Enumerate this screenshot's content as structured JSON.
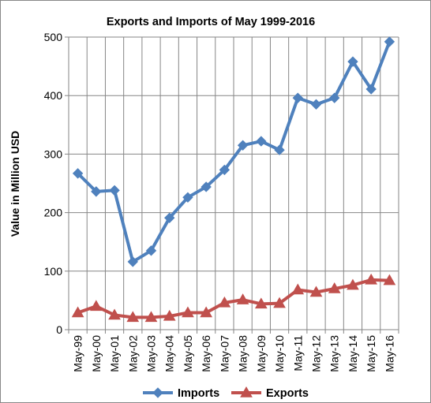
{
  "chart_data": {
    "type": "line",
    "title": "Exports and Imports of  May 1999-2016",
    "xlabel": "",
    "ylabel": "Value in  Million  USD",
    "ylim": [
      0,
      500
    ],
    "yticks": [
      "0",
      "100",
      "200",
      "300",
      "400",
      "500"
    ],
    "grid": true,
    "legend_position": "bottom",
    "categories": [
      "May-99",
      "May-00",
      "May-01",
      "May-02",
      "May-03",
      "May-04",
      "May-05",
      "May-06",
      "May-07",
      "May-08",
      "May-09",
      "May-10",
      "May-11",
      "May-12",
      "May-13",
      "May-14",
      "May-15",
      "May-16"
    ],
    "series": [
      {
        "name": "Imports",
        "color": "#4F81BD",
        "marker": "diamond",
        "values": [
          267,
          236,
          238,
          116,
          135,
          191,
          226,
          244,
          273,
          315,
          322,
          307,
          396,
          385,
          396,
          458,
          411,
          492
        ]
      },
      {
        "name": "Exports",
        "color": "#C0504D",
        "marker": "triangle",
        "values": [
          29,
          40,
          25,
          21,
          21,
          23,
          29,
          29,
          46,
          51,
          44,
          45,
          68,
          64,
          70,
          76,
          85,
          84
        ]
      }
    ]
  }
}
